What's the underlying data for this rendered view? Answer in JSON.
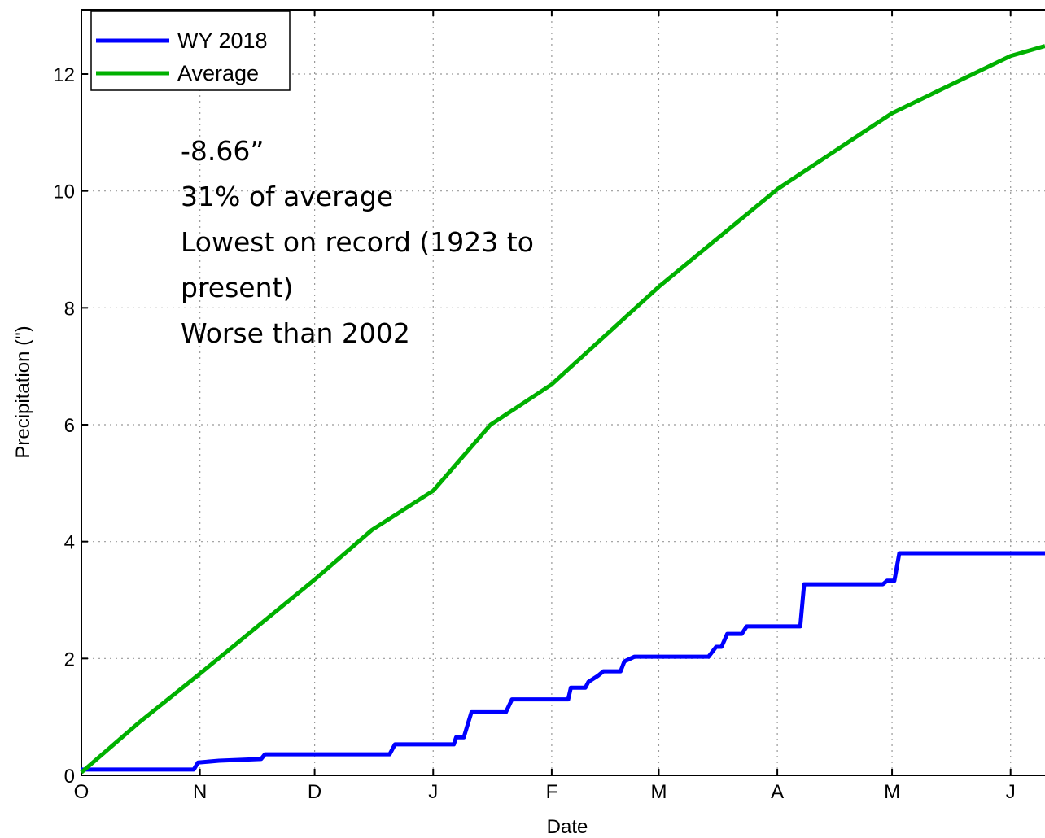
{
  "chart_data": {
    "type": "line",
    "xlabel": "Date",
    "ylabel": "Precipitation (\")",
    "xlim": [
      0,
      252
    ],
    "ylim": [
      0,
      13.1
    ],
    "xticks": [
      {
        "value": 0,
        "label": "O"
      },
      {
        "value": 31,
        "label": "N"
      },
      {
        "value": 61,
        "label": "D"
      },
      {
        "value": 92,
        "label": "J"
      },
      {
        "value": 123,
        "label": "F"
      },
      {
        "value": 151,
        "label": "M"
      },
      {
        "value": 182,
        "label": "A"
      },
      {
        "value": 212,
        "label": "M"
      },
      {
        "value": 243,
        "label": "J"
      }
    ],
    "yticks": [
      0,
      2,
      4,
      6,
      8,
      10,
      12
    ],
    "grid": true,
    "legend": "upper left",
    "series": [
      {
        "name": "WY 2018",
        "color": "#0000ff",
        "x": [
          0,
          29.4,
          30.5,
          36,
          47,
          48,
          80.6,
          82,
          97.4,
          98,
          100,
          102,
          111,
          112.6,
          127.3,
          128,
          131.8,
          132.6,
          135,
          136.5,
          141,
          142,
          144.6,
          164,
          166,
          167.4,
          168.9,
          172.7,
          174,
          188,
          189,
          209.6,
          210.7,
          212.6,
          213.9,
          252
        ],
        "values": [
          0.1,
          0.1,
          0.22,
          0.25,
          0.28,
          0.36,
          0.36,
          0.53,
          0.53,
          0.65,
          0.65,
          1.08,
          1.08,
          1.3,
          1.3,
          1.5,
          1.5,
          1.6,
          1.7,
          1.78,
          1.78,
          1.95,
          2.03,
          2.03,
          2.2,
          2.2,
          2.42,
          2.42,
          2.55,
          2.55,
          3.27,
          3.27,
          3.33,
          3.33,
          3.8,
          3.8
        ]
      },
      {
        "name": "Average",
        "color": "#00b000",
        "x": [
          0,
          15,
          31,
          61,
          76,
          92,
          107,
          123,
          151,
          182,
          212,
          243,
          252
        ],
        "values": [
          0.05,
          0.9,
          1.74,
          3.35,
          4.2,
          4.87,
          6.0,
          6.69,
          8.36,
          10.03,
          11.33,
          12.31,
          12.48
        ]
      }
    ],
    "annotation": [
      "-8.66”",
      "31% of average",
      "Lowest on record (1923 to",
      "present)",
      "Worse than 2002"
    ]
  }
}
